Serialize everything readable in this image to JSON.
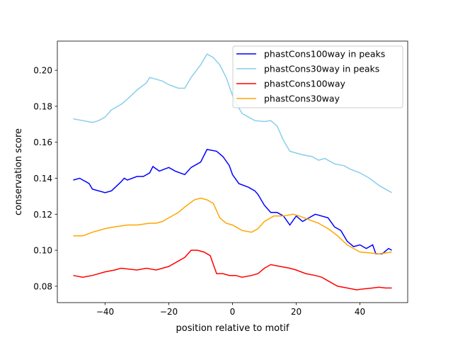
{
  "chart_data": {
    "type": "line",
    "title": "",
    "xlabel": "position relative to motif",
    "ylabel": "conservation score",
    "xlim": [
      -55,
      55
    ],
    "ylim": [
      0.0709,
      0.2162
    ],
    "xticks": [
      -40,
      -20,
      0,
      20,
      40
    ],
    "xtick_labels": [
      "−40",
      "−20",
      "0",
      "20",
      "40"
    ],
    "yticks": [
      0.08,
      0.1,
      0.12,
      0.14,
      0.16,
      0.18,
      0.2
    ],
    "ytick_labels": [
      "0.08",
      "0.10",
      "0.12",
      "0.14",
      "0.16",
      "0.18",
      "0.20"
    ],
    "grid": false,
    "legend_position": "top-right",
    "series": [
      {
        "name": "phastCons100way in peaks",
        "color": "#0000ff",
        "x": [
          -50,
          -48,
          -45,
          -44,
          -40,
          -38,
          -35,
          -34,
          -33,
          -30,
          -28,
          -26,
          -25,
          -23,
          -20,
          -18,
          -15,
          -13,
          -10,
          -8,
          -5,
          -3,
          -1,
          0,
          2,
          5,
          7,
          8,
          10,
          12,
          14,
          16,
          18,
          20,
          22,
          24,
          26,
          30,
          32,
          34,
          36,
          38,
          40,
          42,
          44,
          45,
          47,
          49,
          50
        ],
        "y": [
          0.139,
          0.14,
          0.137,
          0.134,
          0.132,
          0.133,
          0.138,
          0.14,
          0.139,
          0.141,
          0.141,
          0.143,
          0.1465,
          0.144,
          0.146,
          0.144,
          0.142,
          0.146,
          0.149,
          0.156,
          0.155,
          0.152,
          0.147,
          0.142,
          0.137,
          0.135,
          0.133,
          0.131,
          0.125,
          0.121,
          0.121,
          0.119,
          0.114,
          0.119,
          0.116,
          0.118,
          0.12,
          0.118,
          0.113,
          0.111,
          0.105,
          0.102,
          0.103,
          0.101,
          0.103,
          0.098,
          0.098,
          0.101,
          0.1
        ]
      },
      {
        "name": "phastCons30way in peaks",
        "color": "#87ceeb",
        "x": [
          -50,
          -47,
          -44,
          -42,
          -40,
          -38,
          -35,
          -33,
          -30,
          -27,
          -26,
          -24,
          -22,
          -20,
          -17,
          -15,
          -13,
          -10,
          -8,
          -6,
          -4,
          -2,
          0,
          1,
          3,
          5,
          7,
          10,
          12,
          14,
          16,
          18,
          20,
          22,
          25,
          27,
          29,
          32,
          35,
          37,
          40,
          43,
          46,
          48,
          50
        ],
        "y": [
          0.173,
          0.172,
          0.171,
          0.172,
          0.174,
          0.178,
          0.181,
          0.184,
          0.189,
          0.193,
          0.196,
          0.195,
          0.194,
          0.192,
          0.19,
          0.19,
          0.196,
          0.203,
          0.209,
          0.207,
          0.203,
          0.196,
          0.186,
          0.182,
          0.176,
          0.174,
          0.172,
          0.1715,
          0.172,
          0.169,
          0.161,
          0.155,
          0.154,
          0.153,
          0.152,
          0.15,
          0.151,
          0.148,
          0.147,
          0.145,
          0.143,
          0.14,
          0.136,
          0.134,
          0.132
        ]
      },
      {
        "name": "phastCons100way",
        "color": "#ff0000",
        "x": [
          -50,
          -47,
          -44,
          -40,
          -37,
          -35,
          -30,
          -27,
          -24,
          -22,
          -20,
          -17,
          -15,
          -13,
          -11,
          -9,
          -7,
          -5,
          -3,
          -1,
          1,
          3,
          6,
          8,
          10,
          12,
          15,
          18,
          20,
          23,
          26,
          28,
          30,
          33,
          36,
          39,
          41,
          44,
          46,
          48,
          50
        ],
        "y": [
          0.086,
          0.085,
          0.086,
          0.088,
          0.089,
          0.09,
          0.089,
          0.09,
          0.089,
          0.09,
          0.091,
          0.094,
          0.096,
          0.1,
          0.1,
          0.099,
          0.097,
          0.087,
          0.087,
          0.086,
          0.086,
          0.085,
          0.086,
          0.087,
          0.09,
          0.092,
          0.091,
          0.09,
          0.089,
          0.087,
          0.086,
          0.085,
          0.083,
          0.08,
          0.079,
          0.078,
          0.0785,
          0.079,
          0.0795,
          0.079,
          0.079
        ]
      },
      {
        "name": "phastCons30way",
        "color": "#ffa500",
        "x": [
          -50,
          -47,
          -44,
          -40,
          -37,
          -33,
          -30,
          -26,
          -24,
          -22,
          -20,
          -17,
          -15,
          -12,
          -10,
          -8,
          -6,
          -4,
          -2,
          0,
          3,
          6,
          8,
          10,
          13,
          16,
          19,
          21,
          24,
          27,
          30,
          33,
          36,
          38,
          40,
          43,
          46,
          50
        ],
        "y": [
          0.108,
          0.108,
          0.11,
          0.112,
          0.113,
          0.114,
          0.114,
          0.115,
          0.115,
          0.116,
          0.118,
          0.121,
          0.124,
          0.128,
          0.129,
          0.128,
          0.126,
          0.118,
          0.115,
          0.114,
          0.111,
          0.11,
          0.112,
          0.116,
          0.119,
          0.119,
          0.12,
          0.119,
          0.117,
          0.115,
          0.112,
          0.108,
          0.103,
          0.101,
          0.099,
          0.0985,
          0.098,
          0.099
        ]
      }
    ]
  }
}
